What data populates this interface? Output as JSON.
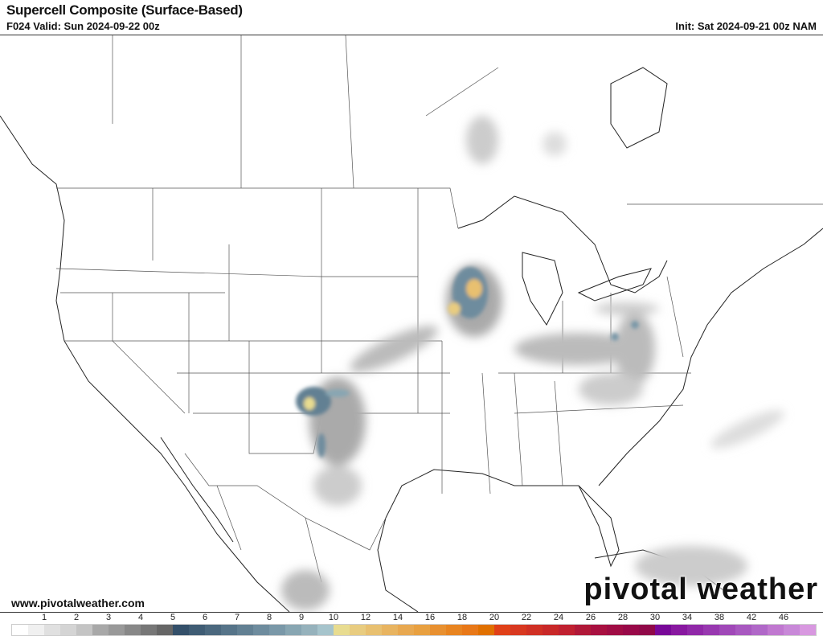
{
  "header": {
    "title": "Supercell Composite (Surface-Based)",
    "valid": "F024 Valid: Sun 2024-09-22 00z",
    "init": "Init: Sat 2024-09-21 00z NAM"
  },
  "footer": {
    "url": "www.pivotalweather.com",
    "watermark": "pivotal weather"
  },
  "colorbar": {
    "labels": [
      "1",
      "2",
      "3",
      "4",
      "5",
      "6",
      "7",
      "8",
      "9",
      "10",
      "12",
      "14",
      "16",
      "18",
      "20",
      "22",
      "24",
      "26",
      "28",
      "30",
      "34",
      "38",
      "42",
      "46"
    ],
    "colors": [
      "#ffffff",
      "#f0f0f0",
      "#e0e0e0",
      "#d4d4d4",
      "#c4c4c4",
      "#a8a8a8",
      "#999999",
      "#888888",
      "#777777",
      "#666666",
      "#34506a",
      "#3f5c74",
      "#4b687e",
      "#567489",
      "#628093",
      "#6e8c9e",
      "#7a98a8",
      "#88a6b2",
      "#96b2bc",
      "#a6c4cc",
      "#e8dc90",
      "#e8cc80",
      "#e8c070",
      "#e8b460",
      "#e8a850",
      "#e8a040",
      "#e89030",
      "#e88420",
      "#e87818",
      "#e07000",
      "#e04018",
      "#d83820",
      "#d03024",
      "#c82828",
      "#c02030",
      "#b01838",
      "#a81040",
      "#a00c44",
      "#980848",
      "#900848",
      "#780898",
      "#8818a0",
      "#9028a8",
      "#9838b0",
      "#a048b8",
      "#a858c0",
      "#b068c8",
      "#c078d0",
      "#c888d8",
      "#d898e0"
    ]
  }
}
